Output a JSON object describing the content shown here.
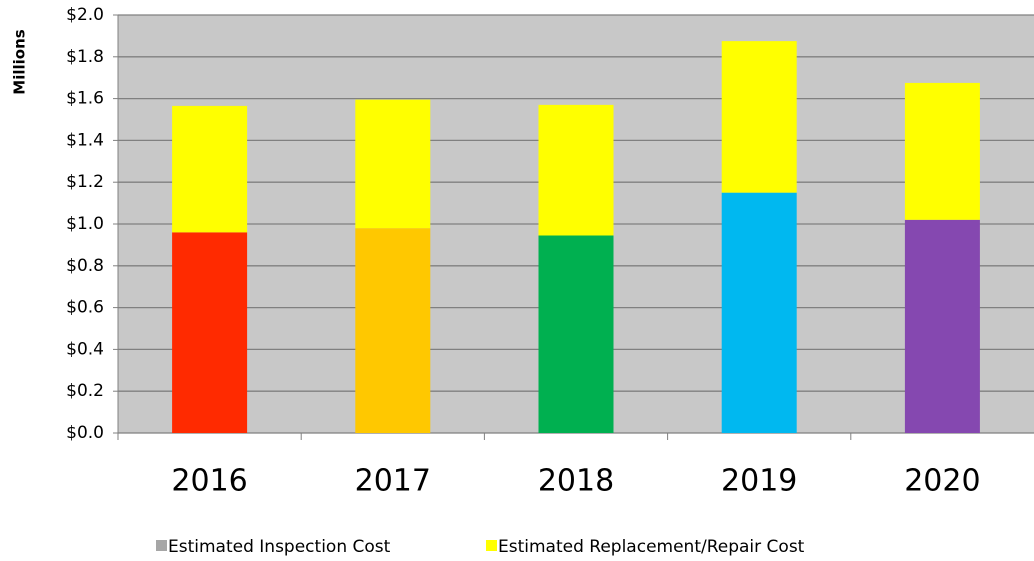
{
  "chart_data": {
    "type": "stacked_bar",
    "y_axis_label": "Millions",
    "categories": [
      "2016",
      "2017",
      "2018",
      "2019",
      "2020"
    ],
    "series": [
      {
        "name": "Estimated Inspection Cost",
        "color": "#a6a6a6",
        "colors": [
          "#ff2a00",
          "#ffc800",
          "#00b050",
          "#00b8f0",
          "#8548b0"
        ],
        "values": [
          0.96,
          0.98,
          0.945,
          1.15,
          1.02
        ]
      },
      {
        "name": "Estimated Replacement/Repair Cost",
        "color": "#ffff00",
        "values": [
          0.605,
          0.615,
          0.625,
          0.725,
          0.655
        ]
      }
    ],
    "ylim": [
      0,
      2.0
    ],
    "yticks": [
      {
        "value": 0,
        "label": "$0.0"
      },
      {
        "value": 0.2,
        "label": "$0.2"
      },
      {
        "value": 0.4,
        "label": "$0.4"
      },
      {
        "value": 0.6,
        "label": "$0.6"
      },
      {
        "value": 0.8,
        "label": "$0.8"
      },
      {
        "value": 1.0,
        "label": "$1.0"
      },
      {
        "value": 1.2,
        "label": "$1.2"
      },
      {
        "value": 1.4,
        "label": "$1.4"
      },
      {
        "value": 1.6,
        "label": "$1.6"
      },
      {
        "value": 1.8,
        "label": "$1.8"
      },
      {
        "value": 2.0,
        "label": "$2.0"
      }
    ],
    "grid": true,
    "legend": "bottom"
  }
}
